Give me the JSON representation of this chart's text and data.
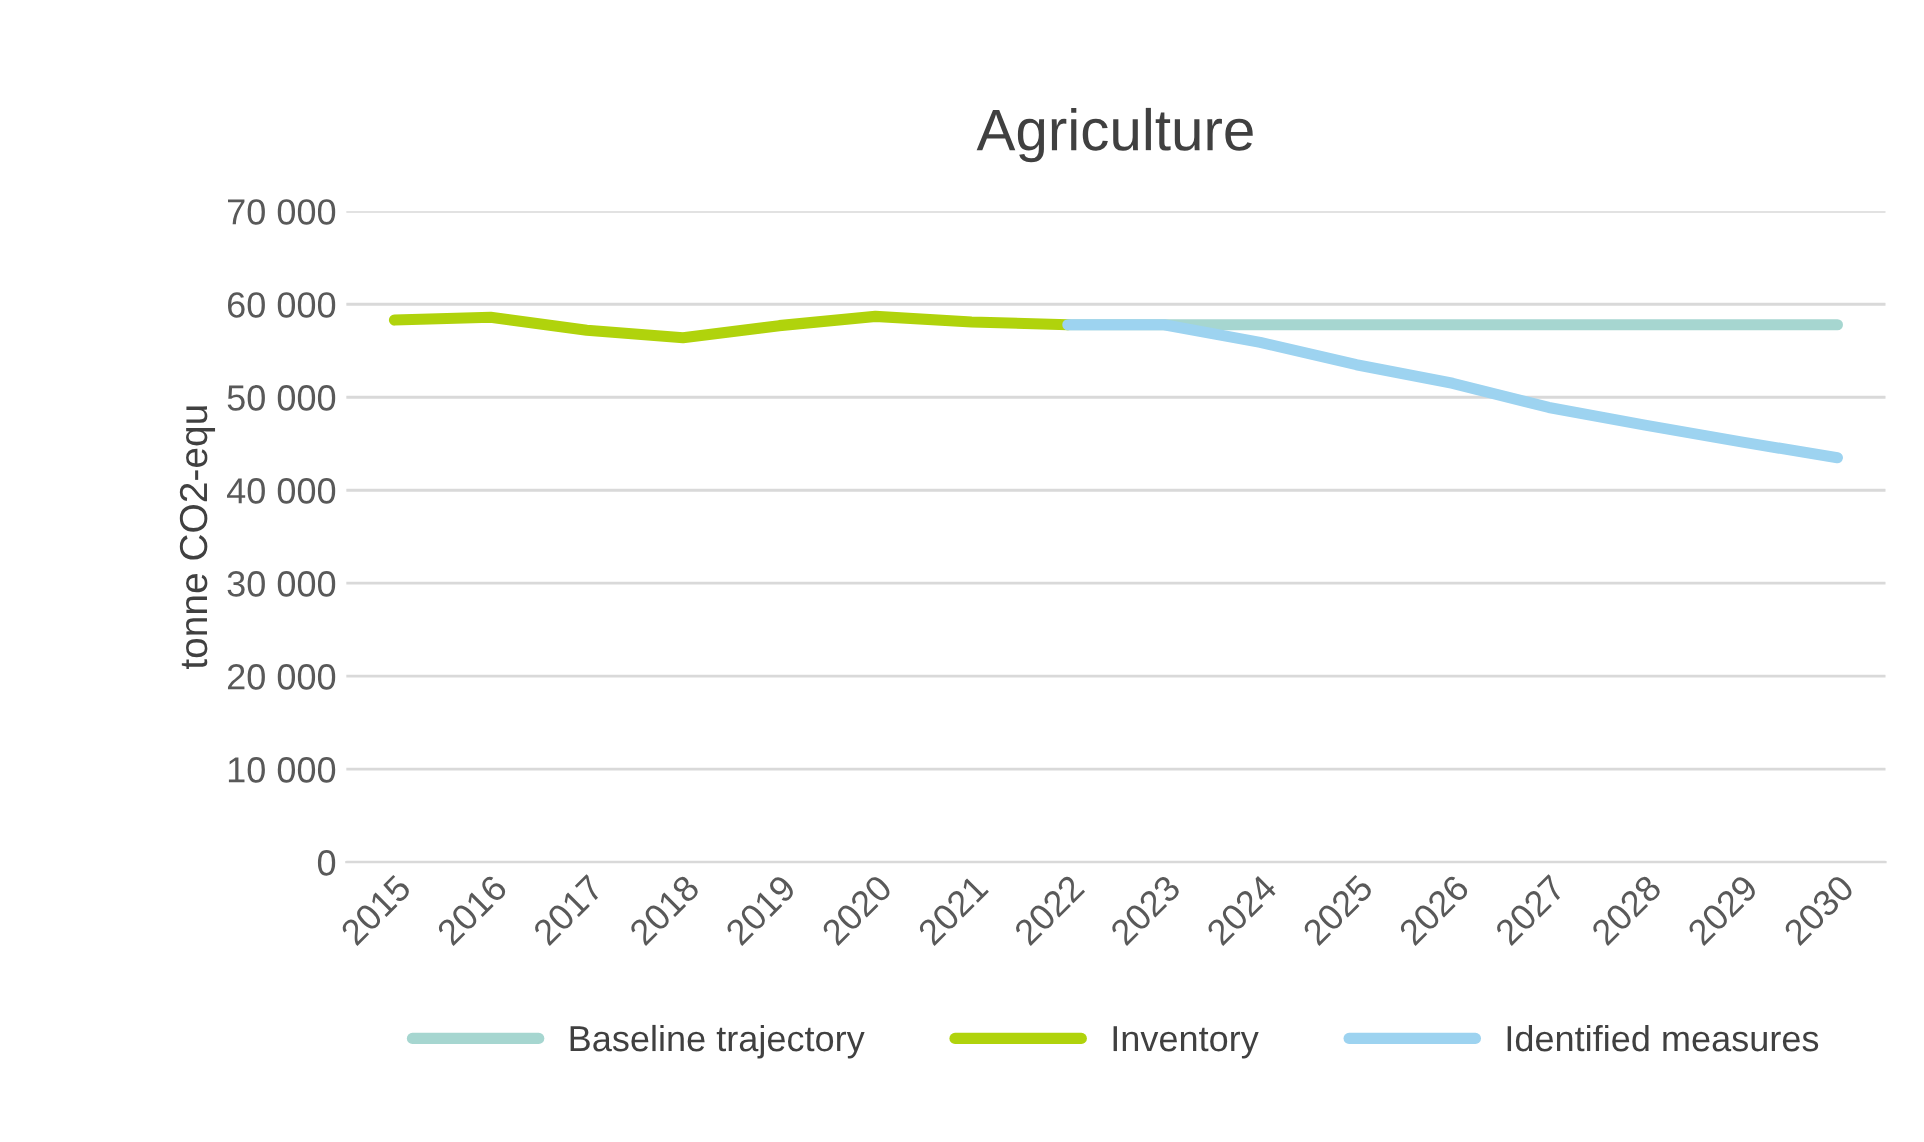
{
  "chart_data": {
    "type": "line",
    "title": "Agriculture",
    "ylabel": "tonne CO2-equ",
    "categories": [
      "2015",
      "2016",
      "2017",
      "2018",
      "2019",
      "2020",
      "2021",
      "2022",
      "2023",
      "2024",
      "2025",
      "2026",
      "2027",
      "2028",
      "2029",
      "2030"
    ],
    "series": [
      {
        "name": "Baseline trajectory",
        "color": "#a6d6d0",
        "values": [
          null,
          null,
          null,
          null,
          null,
          null,
          null,
          57800,
          57800,
          57800,
          57800,
          57800,
          57800,
          57800,
          57800,
          57800
        ]
      },
      {
        "name": "Inventory",
        "color": "#b0d30c",
        "values": [
          58300,
          58600,
          57200,
          56400,
          57700,
          58700,
          58100,
          57800,
          null,
          null,
          null,
          null,
          null,
          null,
          null,
          null
        ]
      },
      {
        "name": "Identified measures",
        "color": "#9dd3f0",
        "values": [
          null,
          null,
          null,
          null,
          null,
          null,
          null,
          57800,
          57800,
          55900,
          53500,
          51500,
          48900,
          47000,
          45200,
          43500
        ]
      }
    ],
    "ylim": [
      0,
      70000
    ],
    "yticks": [
      {
        "value": 0,
        "label": "0"
      },
      {
        "value": 10000,
        "label": "10 000"
      },
      {
        "value": 20000,
        "label": "20 000"
      },
      {
        "value": 30000,
        "label": "30 000"
      },
      {
        "value": 40000,
        "label": "40 000"
      },
      {
        "value": 50000,
        "label": "50 000"
      },
      {
        "value": 60000,
        "label": "60 000"
      },
      {
        "value": 70000,
        "label": "70 000"
      }
    ],
    "grid": "y",
    "legend": "bottom",
    "marker": "none",
    "line_style": "solid"
  }
}
